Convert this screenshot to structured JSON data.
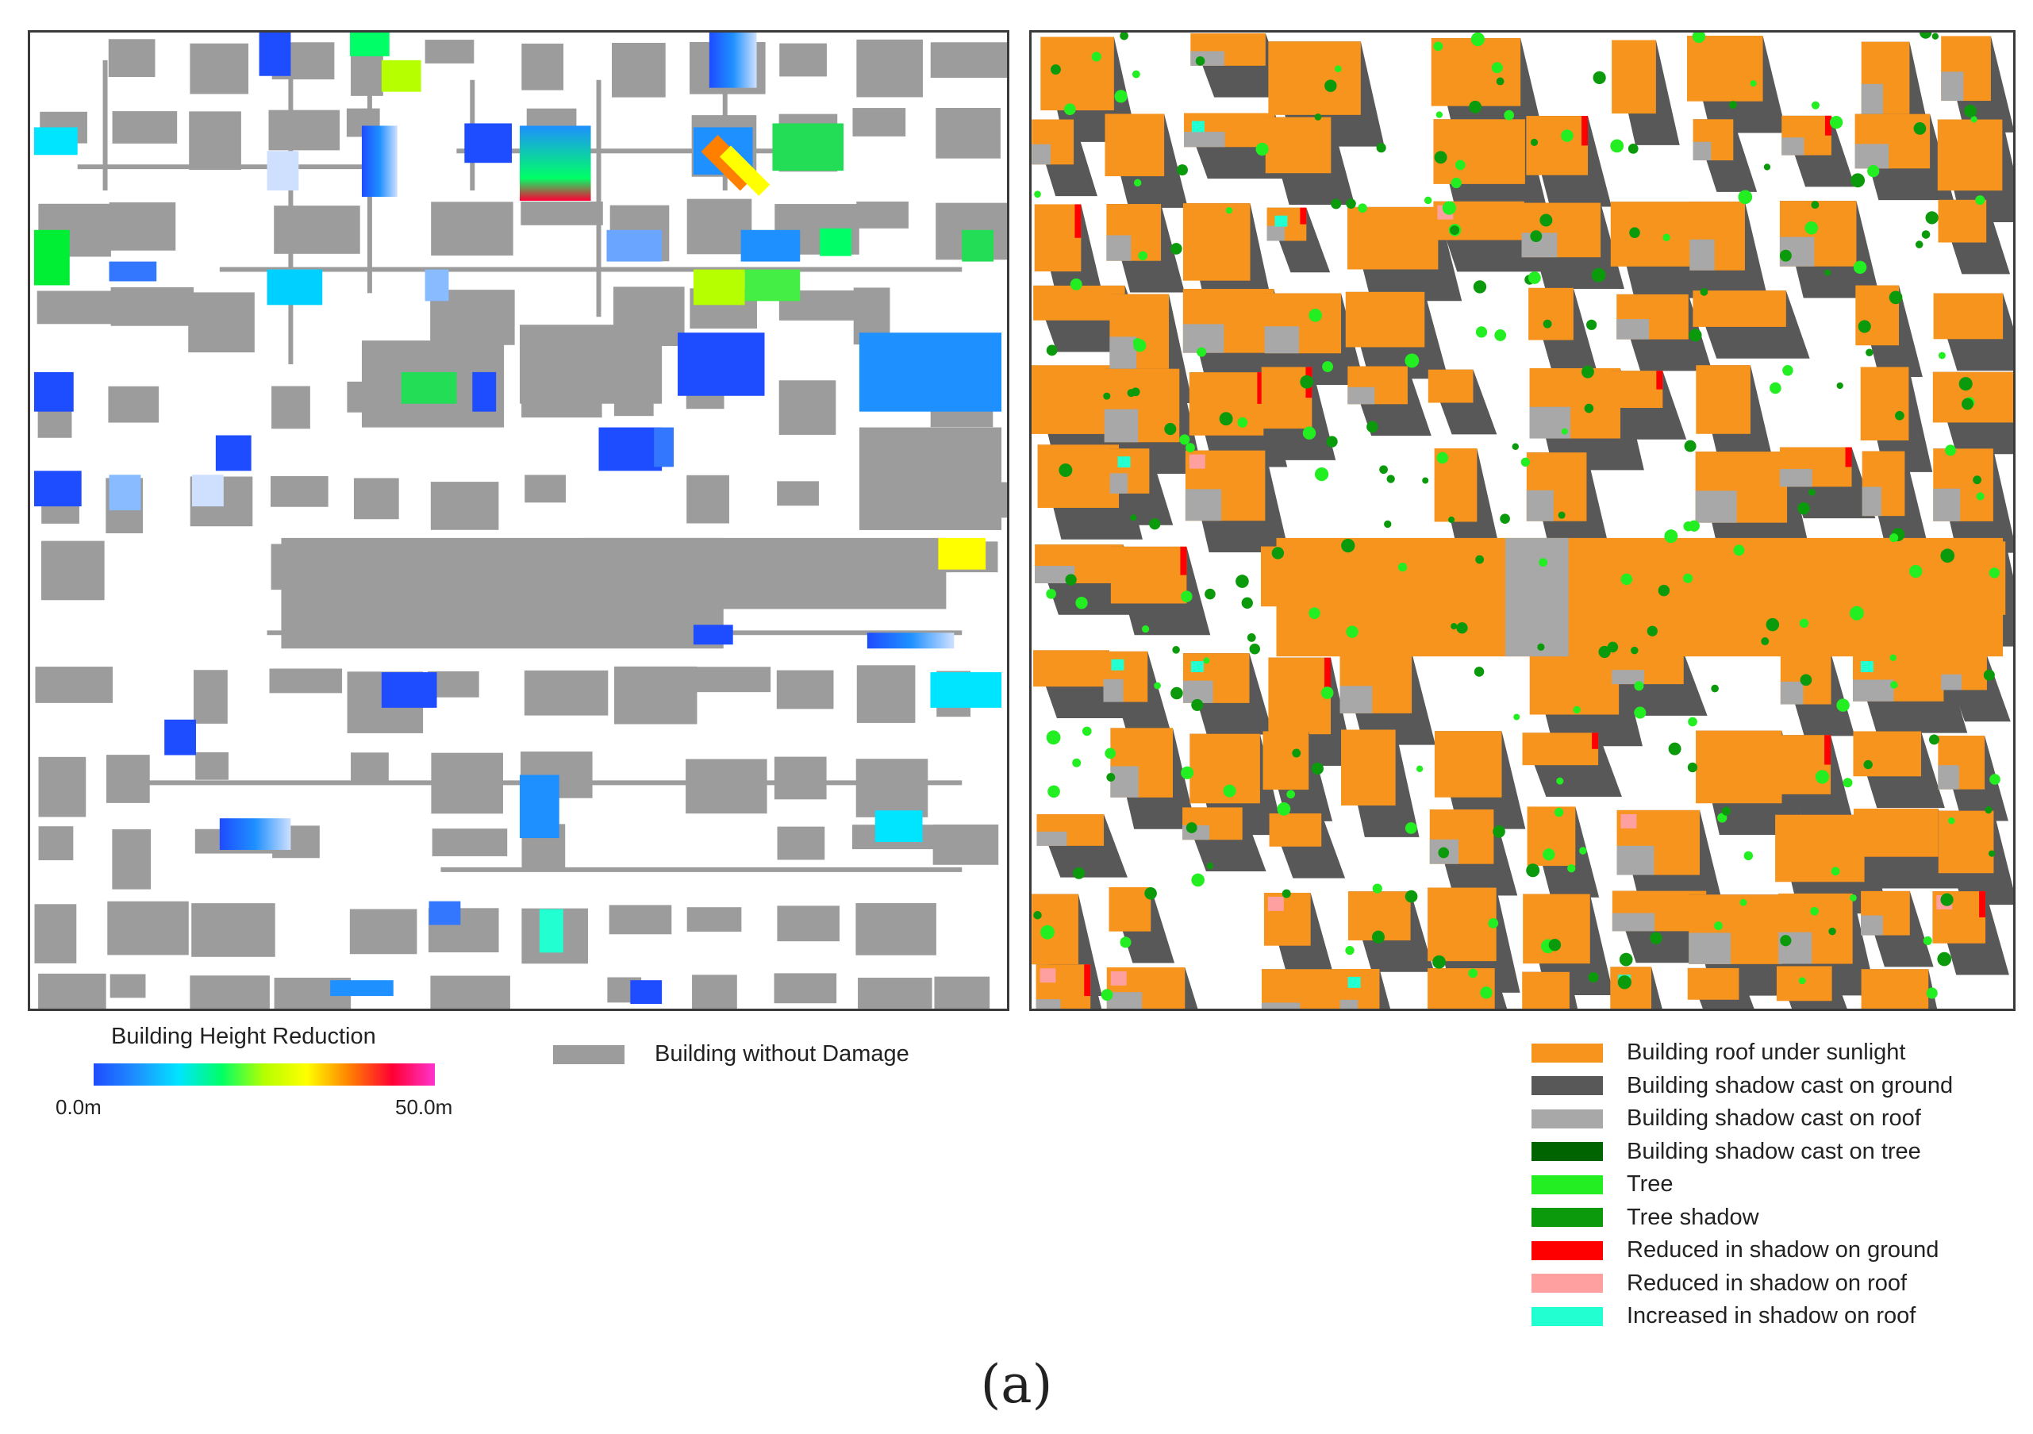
{
  "left_panel": {
    "gradient_legend": {
      "title": "Building Height Reduction",
      "min_label": "0.0m",
      "max_label": "50.0m",
      "stops": [
        "#1e4cff",
        "#1e90ff",
        "#00e5ff",
        "#00ff66",
        "#b5ff00",
        "#ffff00",
        "#ff8000",
        "#ff0033",
        "#ff33cc"
      ]
    },
    "undamaged_legend": {
      "label": "Building without Damage",
      "color": "#9c9c9c"
    }
  },
  "right_panel": {
    "legend": [
      {
        "label": "Building roof  under sunlight",
        "color": "#f7941d"
      },
      {
        "label": "Building shadow cast on ground",
        "color": "#585858"
      },
      {
        "label": "Building shadow cast on roof",
        "color": "#a8a8a8"
      },
      {
        "label": "Building shadow cast on tree",
        "color": "#006400"
      },
      {
        "label": "Tree",
        "color": "#22ee22"
      },
      {
        "label": "Tree shadow",
        "color": "#0b9a0b"
      },
      {
        "label": "Reduced in shadow on ground",
        "color": "#ff0000"
      },
      {
        "label": "Reduced in shadow on roof",
        "color": "#ffa0a0"
      },
      {
        "label": "Increased in shadow on roof",
        "color": "#22ffd0"
      }
    ]
  },
  "caption": "(a)"
}
